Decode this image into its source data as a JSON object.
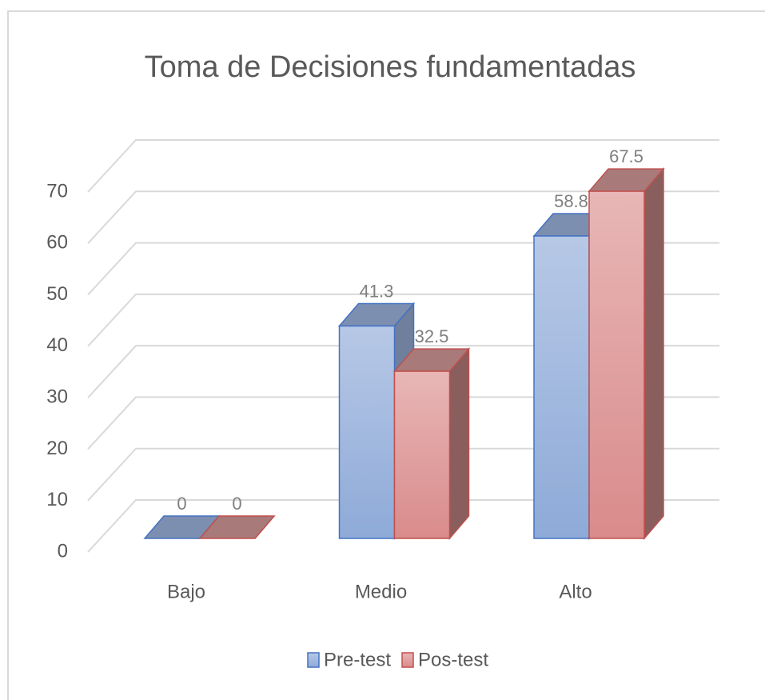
{
  "chart_data": {
    "type": "bar3d",
    "title": "Toma de Decisiones fundamentadas",
    "categories": [
      "Bajo",
      "Medio",
      "Alto"
    ],
    "series": [
      {
        "name": "Pre-test",
        "color": "#4472c4",
        "values": [
          0,
          41.3,
          58.8
        ]
      },
      {
        "name": "Pos-test",
        "color": "#c0504d",
        "values": [
          0,
          32.5,
          67.5
        ]
      }
    ],
    "ylim": [
      0,
      70
    ],
    "yticks": [
      0,
      10,
      20,
      30,
      40,
      50,
      60,
      70
    ],
    "grid": true,
    "legend": "bottom"
  }
}
